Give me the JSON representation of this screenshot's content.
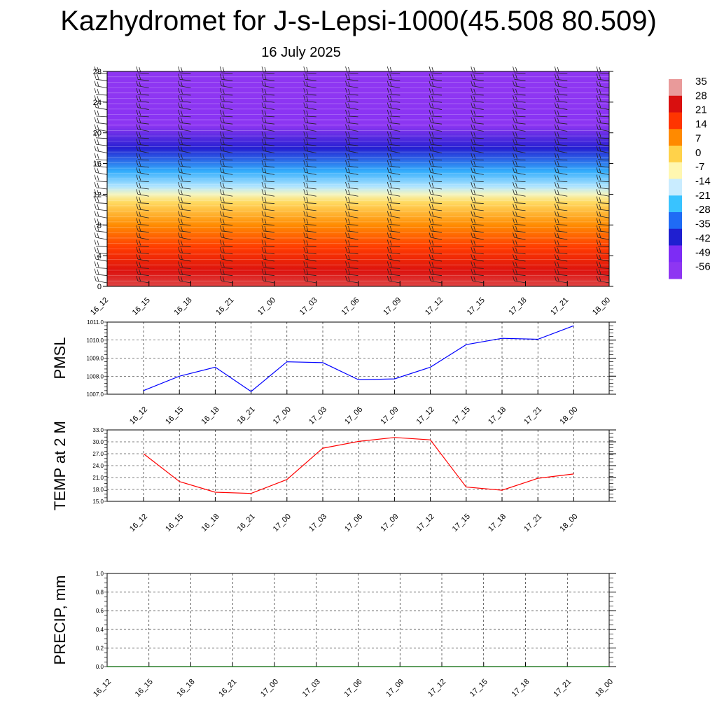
{
  "title": "Kazhydromet for J-s-Lepsi-1000(45.508 80.509)",
  "subtitle": "16 July 2025",
  "chart_data": [
    {
      "type": "heatmap",
      "y_ticks": [
        "0",
        "4",
        "8",
        "12",
        "16",
        "20",
        "24",
        "28"
      ],
      "ylim": [
        0,
        28
      ],
      "x_ticks": [
        "16_12",
        "16_15",
        "16_18",
        "16_21",
        "17_00",
        "17_03",
        "17_06",
        "17_09",
        "17_12",
        "17_15",
        "17_18",
        "17_21",
        "18_00"
      ],
      "colorbar": {
        "labels": [
          "35",
          "28",
          "21",
          "14",
          "7",
          "0",
          "-7",
          "-14",
          "-21",
          "-28",
          "-35",
          "-42",
          "-49",
          "-56"
        ],
        "colors": [
          "#e99a9a",
          "#d90f0f",
          "#ff3500",
          "#ff8a00",
          "#ffd24a",
          "#fff7b0",
          "#c9ecff",
          "#39c3ff",
          "#1f6bf5",
          "#1f1fd0",
          "#7d2cf5",
          "#8e36f2"
        ]
      },
      "profile": [
        {
          "height": 0,
          "value": 30
        },
        {
          "height": 2,
          "value": 26
        },
        {
          "height": 5,
          "value": 18
        },
        {
          "height": 8,
          "value": 10
        },
        {
          "height": 11,
          "value": 0
        },
        {
          "height": 12,
          "value": -8
        },
        {
          "height": 13,
          "value": -16
        },
        {
          "height": 15,
          "value": -25
        },
        {
          "height": 18,
          "value": -40
        },
        {
          "height": 21,
          "value": -60
        },
        {
          "height": 22,
          "value": -54
        },
        {
          "height": 25,
          "value": -58
        },
        {
          "height": 28,
          "value": -60
        }
      ],
      "grid": false
    },
    {
      "type": "line",
      "ylabel": "PMSL",
      "ylim": [
        1007.0,
        1011.0
      ],
      "y_ticks": [
        "1007.0",
        "1008.0",
        "1009.0",
        "1010.0",
        "1011.0"
      ],
      "x": [
        "16_12",
        "16_15",
        "16_18",
        "16_21",
        "17_00",
        "17_03",
        "17_06",
        "17_09",
        "17_12",
        "17_15",
        "17_18",
        "17_21",
        "18_00"
      ],
      "series": [
        {
          "values": [
            1007.2,
            1008.0,
            1008.5,
            1007.15,
            1008.8,
            1008.75,
            1007.8,
            1007.85,
            1008.5,
            1009.75,
            1010.1,
            1010.05,
            1010.8
          ],
          "color": "#0000ff"
        }
      ],
      "grid": true
    },
    {
      "type": "line",
      "ylabel": "TEMP at 2 M",
      "ylim": [
        15.0,
        33.0
      ],
      "y_ticks": [
        "15.0",
        "18.0",
        "21.0",
        "24.0",
        "27.0",
        "30.0",
        "33.0"
      ],
      "x": [
        "16_12",
        "16_15",
        "16_18",
        "16_21",
        "17_00",
        "17_03",
        "17_06",
        "17_09",
        "17_12",
        "17_15",
        "17_18",
        "17_21",
        "18_00"
      ],
      "series": [
        {
          "values": [
            27.0,
            20.0,
            17.3,
            17.0,
            20.5,
            28.4,
            30.1,
            31.1,
            30.5,
            18.6,
            17.8,
            20.8,
            21.9
          ],
          "color": "#ff0000"
        }
      ],
      "grid": true
    },
    {
      "type": "line",
      "ylabel": "PRECIP, mm",
      "ylim": [
        0.0,
        1.0
      ],
      "y_ticks": [
        "0.0",
        "0.2",
        "0.4",
        "0.6",
        "0.8",
        "1.0"
      ],
      "x_ticks": [
        "16_12",
        "16_15",
        "16_18",
        "16_21",
        "17_00",
        "17_03",
        "17_06",
        "17_09",
        "17_12",
        "17_15",
        "17_18",
        "17_21",
        "18_00"
      ],
      "series": [
        {
          "values": [
            0,
            0,
            0,
            0,
            0,
            0,
            0,
            0,
            0,
            0,
            0,
            0,
            0
          ],
          "color": "#006400"
        }
      ],
      "grid": true
    }
  ]
}
